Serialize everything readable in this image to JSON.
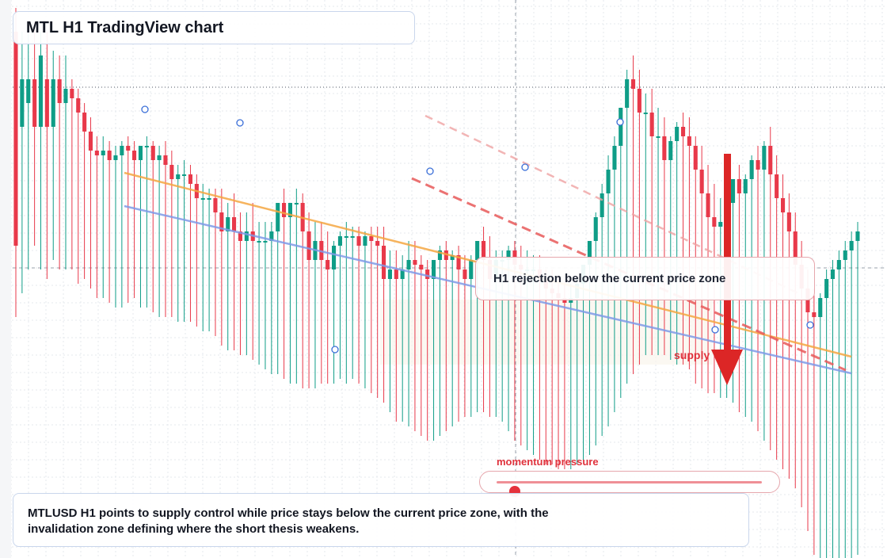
{
  "chart_data": {
    "type": "candlestick",
    "symbol": "MTLUSD",
    "timeframe": "H1",
    "title": "MTL H1 TradingView chart",
    "grid": true,
    "ohlc": [
      [
        0.5,
        0.55,
        -0.1,
        0.05
      ],
      [
        0.3,
        0.5,
        -0.05,
        0.4
      ],
      [
        0.35,
        0.52,
        0.0,
        0.4
      ],
      [
        0.4,
        0.52,
        0.05,
        0.3
      ],
      [
        0.3,
        0.5,
        0.0,
        0.45
      ],
      [
        0.4,
        0.5,
        -0.02,
        0.3
      ],
      [
        0.3,
        0.46,
        0.02,
        0.4
      ],
      [
        0.4,
        0.45,
        0.0,
        0.35
      ],
      [
        0.35,
        0.45,
        0.0,
        0.38
      ],
      [
        0.38,
        0.4,
        0.0,
        0.36
      ],
      [
        0.36,
        0.38,
        -0.03,
        0.33
      ],
      [
        0.33,
        0.35,
        -0.02,
        0.29
      ],
      [
        0.29,
        0.32,
        -0.04,
        0.25
      ],
      [
        0.25,
        0.28,
        -0.06,
        0.24
      ],
      [
        0.24,
        0.28,
        -0.06,
        0.25
      ],
      [
        0.25,
        0.27,
        -0.07,
        0.23
      ],
      [
        0.23,
        0.26,
        -0.08,
        0.24
      ],
      [
        0.24,
        0.27,
        -0.08,
        0.26
      ],
      [
        0.26,
        0.28,
        -0.07,
        0.25
      ],
      [
        0.25,
        0.27,
        -0.06,
        0.23
      ],
      [
        0.23,
        0.26,
        -0.08,
        0.26
      ],
      [
        0.26,
        0.28,
        -0.08,
        0.26
      ],
      [
        0.26,
        0.27,
        -0.09,
        0.23
      ],
      [
        0.23,
        0.26,
        -0.1,
        0.24
      ],
      [
        0.24,
        0.27,
        -0.1,
        0.22
      ],
      [
        0.22,
        0.25,
        -0.1,
        0.19
      ],
      [
        0.19,
        0.22,
        -0.11,
        0.2
      ],
      [
        0.2,
        0.23,
        -0.11,
        0.2
      ],
      [
        0.2,
        0.22,
        -0.11,
        0.18
      ],
      [
        0.18,
        0.2,
        -0.12,
        0.15
      ],
      [
        0.15,
        0.18,
        -0.13,
        0.15
      ],
      [
        0.15,
        0.17,
        -0.13,
        0.15
      ],
      [
        0.15,
        0.17,
        -0.14,
        0.12
      ],
      [
        0.12,
        0.17,
        -0.16,
        0.08
      ],
      [
        0.08,
        0.14,
        -0.17,
        0.11
      ],
      [
        0.11,
        0.16,
        -0.17,
        0.08
      ],
      [
        0.08,
        0.12,
        -0.18,
        0.06
      ],
      [
        0.06,
        0.12,
        -0.18,
        0.08
      ],
      [
        0.08,
        0.14,
        -0.19,
        0.06
      ],
      [
        0.06,
        0.1,
        -0.2,
        0.06
      ],
      [
        0.06,
        0.1,
        -0.21,
        0.06
      ],
      [
        0.06,
        0.1,
        -0.22,
        0.08
      ],
      [
        0.08,
        0.14,
        -0.22,
        0.14
      ],
      [
        0.14,
        0.17,
        -0.23,
        0.11
      ],
      [
        0.11,
        0.14,
        -0.24,
        0.14
      ],
      [
        0.14,
        0.17,
        -0.24,
        0.14
      ],
      [
        0.14,
        0.16,
        -0.25,
        0.08
      ],
      [
        0.08,
        0.12,
        -0.25,
        0.02
      ],
      [
        0.02,
        0.1,
        -0.25,
        0.06
      ],
      [
        0.06,
        0.1,
        -0.24,
        0.02
      ],
      [
        0.02,
        0.08,
        -0.24,
        0.0
      ],
      [
        0.0,
        0.06,
        -0.24,
        0.05
      ],
      [
        0.05,
        0.08,
        -0.23,
        0.07
      ],
      [
        0.07,
        0.1,
        -0.24,
        0.07
      ],
      [
        0.07,
        0.09,
        -0.23,
        0.07
      ],
      [
        0.07,
        0.09,
        -0.24,
        0.05
      ],
      [
        0.05,
        0.08,
        -0.25,
        0.07
      ],
      [
        0.07,
        0.09,
        -0.26,
        0.06
      ],
      [
        0.06,
        0.09,
        -0.27,
        0.05
      ],
      [
        0.05,
        0.09,
        -0.28,
        -0.02
      ],
      [
        -0.02,
        0.04,
        -0.3,
        0.0
      ],
      [
        0.0,
        0.04,
        -0.32,
        -0.02
      ],
      [
        -0.02,
        0.03,
        -0.32,
        0.0
      ],
      [
        0.0,
        0.06,
        -0.33,
        0.02
      ],
      [
        0.02,
        0.06,
        -0.34,
        0.01
      ],
      [
        0.01,
        0.03,
        -0.35,
        0.0
      ],
      [
        0.0,
        0.02,
        -0.36,
        -0.02
      ],
      [
        -0.02,
        0.02,
        -0.36,
        0.02
      ],
      [
        0.02,
        0.05,
        -0.35,
        0.04
      ],
      [
        0.04,
        0.06,
        -0.34,
        0.02
      ],
      [
        0.02,
        0.04,
        -0.33,
        0.03
      ],
      [
        0.03,
        0.05,
        -0.32,
        0.0
      ],
      [
        0.0,
        0.03,
        -0.31,
        -0.02
      ],
      [
        -0.02,
        0.03,
        -0.31,
        0.02
      ],
      [
        0.02,
        0.06,
        -0.3,
        0.06
      ],
      [
        0.06,
        0.09,
        -0.3,
        0.02
      ],
      [
        0.02,
        0.07,
        -0.31,
        -0.02
      ],
      [
        -0.02,
        0.04,
        -0.31,
        0.02
      ],
      [
        0.02,
        0.04,
        -0.32,
        0.02
      ],
      [
        0.02,
        0.05,
        -0.34,
        0.04
      ],
      [
        0.04,
        0.06,
        -0.36,
        0.01
      ],
      [
        0.01,
        0.05,
        -0.37,
        0.0
      ],
      [
        0.0,
        0.04,
        -0.38,
        0.0
      ],
      [
        0.0,
        0.03,
        -0.39,
        0.0
      ],
      [
        0.0,
        0.03,
        -0.4,
        -0.02
      ],
      [
        -0.02,
        0.0,
        -0.41,
        -0.04
      ],
      [
        -0.04,
        0.0,
        -0.41,
        -0.05
      ],
      [
        -0.05,
        -0.01,
        -0.42,
        -0.06
      ],
      [
        -0.06,
        -0.02,
        -0.42,
        -0.07
      ],
      [
        -0.07,
        -0.03,
        -0.42,
        -0.06
      ],
      [
        -0.06,
        -0.02,
        -0.41,
        -0.03
      ],
      [
        -0.03,
        0.0,
        -0.4,
        0.01
      ],
      [
        0.01,
        0.06,
        -0.39,
        0.06
      ],
      [
        0.06,
        0.12,
        -0.37,
        0.11
      ],
      [
        0.11,
        0.18,
        -0.35,
        0.16
      ],
      [
        0.16,
        0.24,
        -0.33,
        0.21
      ],
      [
        0.21,
        0.28,
        -0.3,
        0.26
      ],
      [
        0.26,
        0.34,
        -0.27,
        0.34
      ],
      [
        0.34,
        0.42,
        -0.24,
        0.4
      ],
      [
        0.4,
        0.45,
        -0.22,
        0.38
      ],
      [
        0.38,
        0.42,
        -0.2,
        0.33
      ],
      [
        0.33,
        0.37,
        -0.18,
        0.33
      ],
      [
        0.33,
        0.38,
        -0.18,
        0.28
      ],
      [
        0.28,
        0.34,
        -0.18,
        0.28
      ],
      [
        0.28,
        0.32,
        -0.18,
        0.23
      ],
      [
        0.23,
        0.28,
        -0.19,
        0.27
      ],
      [
        0.27,
        0.31,
        -0.2,
        0.3
      ],
      [
        0.3,
        0.33,
        -0.2,
        0.28
      ],
      [
        0.28,
        0.32,
        -0.21,
        0.26
      ],
      [
        0.26,
        0.28,
        -0.24,
        0.21
      ],
      [
        0.21,
        0.26,
        -0.25,
        0.16
      ],
      [
        0.16,
        0.22,
        -0.26,
        0.11
      ],
      [
        0.11,
        0.18,
        -0.26,
        0.09
      ],
      [
        0.09,
        0.15,
        -0.27,
        0.1
      ],
      [
        0.1,
        0.14,
        -0.27,
        0.14
      ],
      [
        0.14,
        0.18,
        -0.28,
        0.19
      ],
      [
        0.19,
        0.22,
        -0.3,
        0.16
      ],
      [
        0.16,
        0.2,
        -0.31,
        0.19
      ],
      [
        0.19,
        0.24,
        -0.32,
        0.23
      ],
      [
        0.23,
        0.26,
        -0.34,
        0.21
      ],
      [
        0.21,
        0.27,
        -0.36,
        0.26
      ],
      [
        0.26,
        0.3,
        -0.38,
        0.2
      ],
      [
        0.2,
        0.24,
        -0.4,
        0.15
      ],
      [
        0.15,
        0.2,
        -0.42,
        0.12
      ],
      [
        0.12,
        0.16,
        -0.44,
        0.08
      ],
      [
        0.08,
        0.12,
        -0.46,
        0.01
      ],
      [
        0.01,
        0.06,
        -0.5,
        -0.04
      ],
      [
        -0.04,
        0.0,
        -0.55,
        -0.09
      ],
      [
        -0.09,
        -0.04,
        -0.6,
        -0.1
      ],
      [
        -0.1,
        -0.05,
        -0.62,
        -0.06
      ],
      [
        -0.06,
        0.0,
        -0.62,
        -0.02
      ],
      [
        -0.02,
        0.02,
        -0.62,
        0.0
      ],
      [
        0.0,
        0.04,
        -0.62,
        0.02
      ],
      [
        0.02,
        0.06,
        -0.62,
        0.04
      ],
      [
        0.04,
        0.08,
        -0.61,
        0.06
      ],
      [
        0.06,
        0.1,
        -0.6,
        0.08
      ]
    ],
    "trendlines": [
      {
        "color": "#f5a742",
        "style": "solid"
      },
      {
        "color": "#7f9be8",
        "style": "solid"
      },
      {
        "color": "#e85a5a",
        "style": "dashed"
      },
      {
        "color": "#f0a3a3",
        "style": "dashed"
      }
    ],
    "bull_color": "#0f9d87",
    "bear_color": "#e8394a",
    "marker_color": "#3b6fd8"
  },
  "overlays": {
    "callout": "H1 rejection below the current price zone",
    "supply_label": "supply",
    "momentum_label": "momentum pressure",
    "momentum_value": 0.07,
    "summary_line1": "MTLUSD H1 points to supply control while price stays below the current price zone, with the",
    "summary_line2": "invalidation zone defining where the short thesis weakens."
  },
  "colors": {
    "accent_red": "#e0323c",
    "arrow_red": "#dc2626"
  }
}
